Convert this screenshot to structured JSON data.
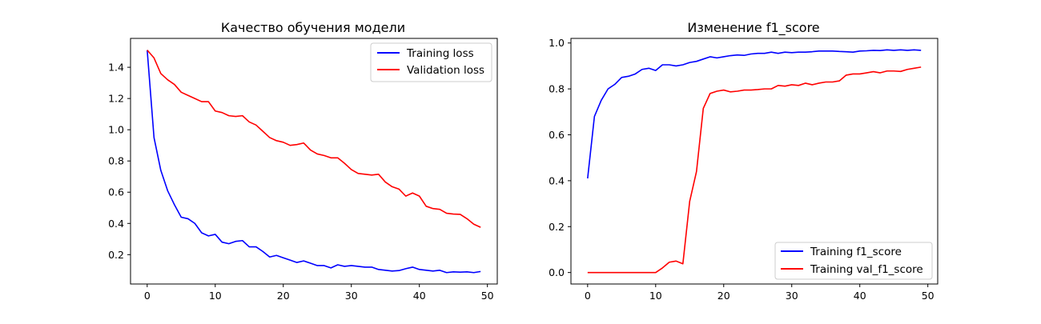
{
  "chart_data": [
    {
      "type": "line",
      "title": "Качество обучения модели",
      "xlabel": "",
      "ylabel": "",
      "xlim": [
        -2.45,
        51.45
      ],
      "ylim": [
        0.012,
        1.585
      ],
      "xticks": [
        0,
        10,
        20,
        30,
        40,
        50
      ],
      "xtick_labels": [
        "0",
        "10",
        "20",
        "30",
        "40",
        "50"
      ],
      "yticks": [
        0.2,
        0.4,
        0.6,
        0.8,
        1.0,
        1.2,
        1.4
      ],
      "ytick_labels": [
        "0.2",
        "0.4",
        "0.6",
        "0.8",
        "1.0",
        "1.2",
        "1.4"
      ],
      "legend_position": "top-right",
      "grid": false,
      "x": [
        0,
        1,
        2,
        3,
        4,
        5,
        6,
        7,
        8,
        9,
        10,
        11,
        12,
        13,
        14,
        15,
        16,
        17,
        18,
        19,
        20,
        21,
        22,
        23,
        24,
        25,
        26,
        27,
        28,
        29,
        30,
        31,
        32,
        33,
        34,
        35,
        36,
        37,
        38,
        39,
        40,
        41,
        42,
        43,
        44,
        45,
        46,
        47,
        48,
        49
      ],
      "series": [
        {
          "name": "Training loss",
          "color": "#0000ff",
          "values": [
            1.51,
            0.95,
            0.74,
            0.61,
            0.52,
            0.44,
            0.43,
            0.4,
            0.34,
            0.32,
            0.33,
            0.28,
            0.27,
            0.285,
            0.29,
            0.25,
            0.25,
            0.22,
            0.185,
            0.195,
            0.18,
            0.165,
            0.15,
            0.16,
            0.145,
            0.13,
            0.13,
            0.115,
            0.135,
            0.125,
            0.13,
            0.125,
            0.12,
            0.12,
            0.105,
            0.1,
            0.095,
            0.098,
            0.11,
            0.12,
            0.105,
            0.1,
            0.095,
            0.1,
            0.085,
            0.09,
            0.088,
            0.09,
            0.085,
            0.092
          ]
        },
        {
          "name": "Validation loss",
          "color": "#ff0000",
          "values": [
            1.51,
            1.46,
            1.36,
            1.32,
            1.29,
            1.24,
            1.22,
            1.2,
            1.18,
            1.18,
            1.12,
            1.11,
            1.09,
            1.085,
            1.09,
            1.05,
            1.03,
            0.99,
            0.95,
            0.93,
            0.92,
            0.9,
            0.905,
            0.915,
            0.87,
            0.845,
            0.835,
            0.82,
            0.82,
            0.785,
            0.745,
            0.72,
            0.715,
            0.71,
            0.715,
            0.665,
            0.635,
            0.62,
            0.575,
            0.595,
            0.575,
            0.51,
            0.495,
            0.49,
            0.465,
            0.46,
            0.458,
            0.43,
            0.395,
            0.375
          ]
        }
      ]
    },
    {
      "type": "line",
      "title": "Изменение f1_score",
      "xlabel": "",
      "ylabel": "",
      "xlim": [
        -2.45,
        51.45
      ],
      "ylim": [
        -0.05,
        1.02
      ],
      "xticks": [
        0,
        10,
        20,
        30,
        40,
        50
      ],
      "xtick_labels": [
        "0",
        "10",
        "20",
        "30",
        "40",
        "50"
      ],
      "yticks": [
        0.0,
        0.2,
        0.4,
        0.6,
        0.8,
        1.0
      ],
      "ytick_labels": [
        "0.0",
        "0.2",
        "0.4",
        "0.6",
        "0.8",
        "1.0"
      ],
      "legend_position": "bottom-right",
      "grid": false,
      "x": [
        0,
        1,
        2,
        3,
        4,
        5,
        6,
        7,
        8,
        9,
        10,
        11,
        12,
        13,
        14,
        15,
        16,
        17,
        18,
        19,
        20,
        21,
        22,
        23,
        24,
        25,
        26,
        27,
        28,
        29,
        30,
        31,
        32,
        33,
        34,
        35,
        36,
        37,
        38,
        39,
        40,
        41,
        42,
        43,
        44,
        45,
        46,
        47,
        48,
        49
      ],
      "series": [
        {
          "name": "Training f1_score",
          "color": "#0000ff",
          "values": [
            0.41,
            0.68,
            0.75,
            0.8,
            0.82,
            0.85,
            0.855,
            0.865,
            0.885,
            0.89,
            0.88,
            0.905,
            0.905,
            0.9,
            0.905,
            0.915,
            0.92,
            0.93,
            0.94,
            0.935,
            0.94,
            0.945,
            0.948,
            0.946,
            0.952,
            0.955,
            0.955,
            0.96,
            0.955,
            0.96,
            0.958,
            0.96,
            0.96,
            0.962,
            0.965,
            0.965,
            0.965,
            0.963,
            0.962,
            0.96,
            0.965,
            0.966,
            0.968,
            0.967,
            0.97,
            0.968,
            0.97,
            0.968,
            0.97,
            0.968
          ]
        },
        {
          "name": "Training val_f1_score",
          "color": "#ff0000",
          "values": [
            0,
            0,
            0,
            0,
            0,
            0,
            0,
            0,
            0,
            0,
            0,
            0.02,
            0.045,
            0.05,
            0.038,
            0.31,
            0.44,
            0.715,
            0.78,
            0.79,
            0.795,
            0.787,
            0.79,
            0.795,
            0.795,
            0.797,
            0.8,
            0.8,
            0.815,
            0.812,
            0.818,
            0.815,
            0.825,
            0.818,
            0.825,
            0.83,
            0.83,
            0.835,
            0.86,
            0.865,
            0.865,
            0.87,
            0.875,
            0.87,
            0.878,
            0.878,
            0.876,
            0.885,
            0.89,
            0.895
          ]
        }
      ]
    }
  ]
}
